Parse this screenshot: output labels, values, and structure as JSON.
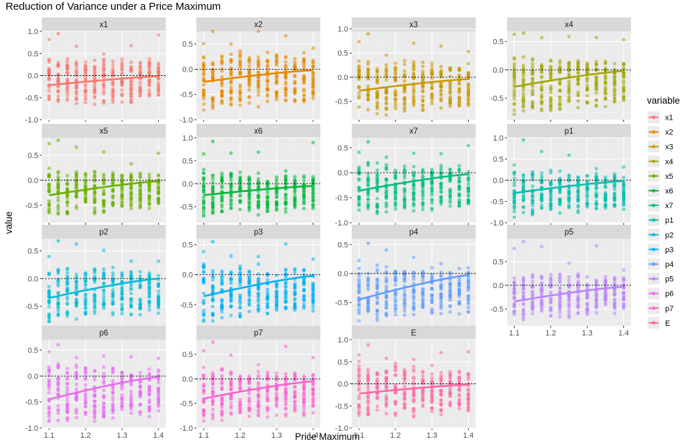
{
  "chart_data": {
    "type": "scatter",
    "title": "Reduction of Variance under a Price Maximum",
    "xlabel": "Price Maximum",
    "ylabel": "value",
    "legend_title": "variable",
    "legend_position": "right",
    "x_levels": [
      1.1,
      1.125,
      1.15,
      1.175,
      1.2,
      1.225,
      1.25,
      1.275,
      1.3,
      1.325,
      1.35,
      1.375,
      1.4
    ],
    "x_ticks": [
      "1.1",
      "1.2",
      "1.3",
      "1.4"
    ],
    "xlim": [
      1.08,
      1.42
    ],
    "reference_line_y": 0,
    "grid": true,
    "panels": [
      {
        "name": "x1",
        "color": "#F8766D",
        "ylim": [
          -1.0,
          1.0
        ],
        "yticks": [
          "-1.0",
          "-0.5",
          "0.0",
          "0.5",
          "1.0"
        ],
        "fit": [
          -0.22,
          -0.02
        ],
        "spread": [
          -0.78,
          0.5
        ],
        "max_outlier": 0.95
      },
      {
        "name": "x2",
        "color": "#E58700",
        "ylim": [
          -1.0,
          0.75
        ],
        "yticks": [
          "-1.0",
          "-0.5",
          "0.0",
          "0.5"
        ],
        "fit": [
          -0.25,
          -0.02
        ],
        "spread": [
          -0.85,
          0.45
        ],
        "max_outlier": 0.78
      },
      {
        "name": "x3",
        "color": "#C99800",
        "ylim": [
          -0.88,
          0.95
        ],
        "yticks": [
          "-0.5",
          "0.0",
          "0.5",
          "1.0"
        ],
        "fit": [
          -0.28,
          -0.04
        ],
        "spread": [
          -0.85,
          0.45
        ],
        "max_outlier": 0.9
      },
      {
        "name": "x4",
        "color": "#A3A500",
        "ylim": [
          -0.88,
          0.68
        ],
        "yticks": [
          "-0.5",
          "0.0",
          "0.5"
        ],
        "fit": [
          -0.3,
          -0.02
        ],
        "spread": [
          -0.82,
          0.3
        ],
        "max_outlier": 0.65
      },
      {
        "name": "x5",
        "color": "#6BB100",
        "ylim": [
          -0.85,
          0.85
        ],
        "yticks": [
          "-0.5",
          "0.0",
          "0.5"
        ],
        "fit": [
          -0.3,
          -0.02
        ],
        "spread": [
          -0.78,
          0.3
        ],
        "max_outlier": 0.8
      },
      {
        "name": "x6",
        "color": "#00BA38",
        "ylim": [
          -0.85,
          1.0
        ],
        "yticks": [
          "-0.5",
          "0.0",
          "0.5",
          "1.0"
        ],
        "fit": [
          -0.25,
          -0.05
        ],
        "spread": [
          -0.78,
          0.35
        ],
        "max_outlier": 0.92
      },
      {
        "name": "x7",
        "color": "#00BF7D",
        "ylim": [
          -1.0,
          0.7
        ],
        "yticks": [
          "-1.0",
          "-0.5",
          "0.0",
          "0.5"
        ],
        "fit": [
          -0.36,
          -0.03
        ],
        "spread": [
          -0.9,
          0.3
        ],
        "max_outlier": 0.62
      },
      {
        "name": "p1",
        "color": "#00C0AF",
        "ylim": [
          -1.0,
          1.0
        ],
        "yticks": [
          "-1.0",
          "-0.5",
          "0.0",
          "0.5",
          "1.0"
        ],
        "fit": [
          -0.3,
          -0.02
        ],
        "spread": [
          -0.88,
          0.3
        ],
        "max_outlier": 0.95
      },
      {
        "name": "p2",
        "color": "#00BCD8",
        "ylim": [
          -0.85,
          0.72
        ],
        "yticks": [
          "-0.5",
          "0.0",
          "0.5"
        ],
        "fit": [
          -0.35,
          0.0
        ],
        "spread": [
          -0.82,
          0.3
        ],
        "max_outlier": 0.68
      },
      {
        "name": "p3",
        "color": "#00B0F6",
        "ylim": [
          -0.85,
          0.6
        ],
        "yticks": [
          "-0.5",
          "0.0",
          "0.5"
        ],
        "fit": [
          -0.36,
          -0.02
        ],
        "spread": [
          -0.82,
          0.25
        ],
        "max_outlier": 0.55
      },
      {
        "name": "p4",
        "color": "#619CFF",
        "ylim": [
          -0.9,
          0.6
        ],
        "yticks": [
          "-0.5",
          "0.0",
          "0.5"
        ],
        "fit": [
          -0.45,
          -0.03
        ],
        "spread": [
          -0.88,
          0.2
        ],
        "max_outlier": 0.52
      },
      {
        "name": "p5",
        "color": "#B983FF",
        "ylim": [
          -0.85,
          0.98
        ],
        "yticks": [
          "-0.5",
          "0.0",
          "0.5"
        ],
        "fit": [
          -0.34,
          -0.03
        ],
        "spread": [
          -0.78,
          0.35
        ],
        "max_outlier": 0.92
      },
      {
        "name": "p6",
        "color": "#E76BF3",
        "ylim": [
          -1.0,
          0.7
        ],
        "yticks": [
          "-1.0",
          "-0.5",
          "0.0",
          "0.5"
        ],
        "fit": [
          -0.45,
          -0.02
        ],
        "spread": [
          -0.95,
          0.3
        ],
        "max_outlier": 0.6
      },
      {
        "name": "p7",
        "color": "#FD61D1",
        "ylim": [
          -1.0,
          0.8
        ],
        "yticks": [
          "-1.0",
          "-0.5",
          "0.0",
          "0.5"
        ],
        "fit": [
          -0.4,
          -0.05
        ],
        "spread": [
          -0.92,
          0.3
        ],
        "max_outlier": 0.75
      },
      {
        "name": "E",
        "color": "#FF67A4",
        "ylim": [
          -1.0,
          1.0
        ],
        "yticks": [
          "-1.0",
          "-0.5",
          "0.0",
          "0.5",
          "1.0"
        ],
        "fit": [
          -0.22,
          -0.02
        ],
        "spread": [
          -0.88,
          0.55
        ],
        "max_outlier": 0.88
      }
    ]
  }
}
